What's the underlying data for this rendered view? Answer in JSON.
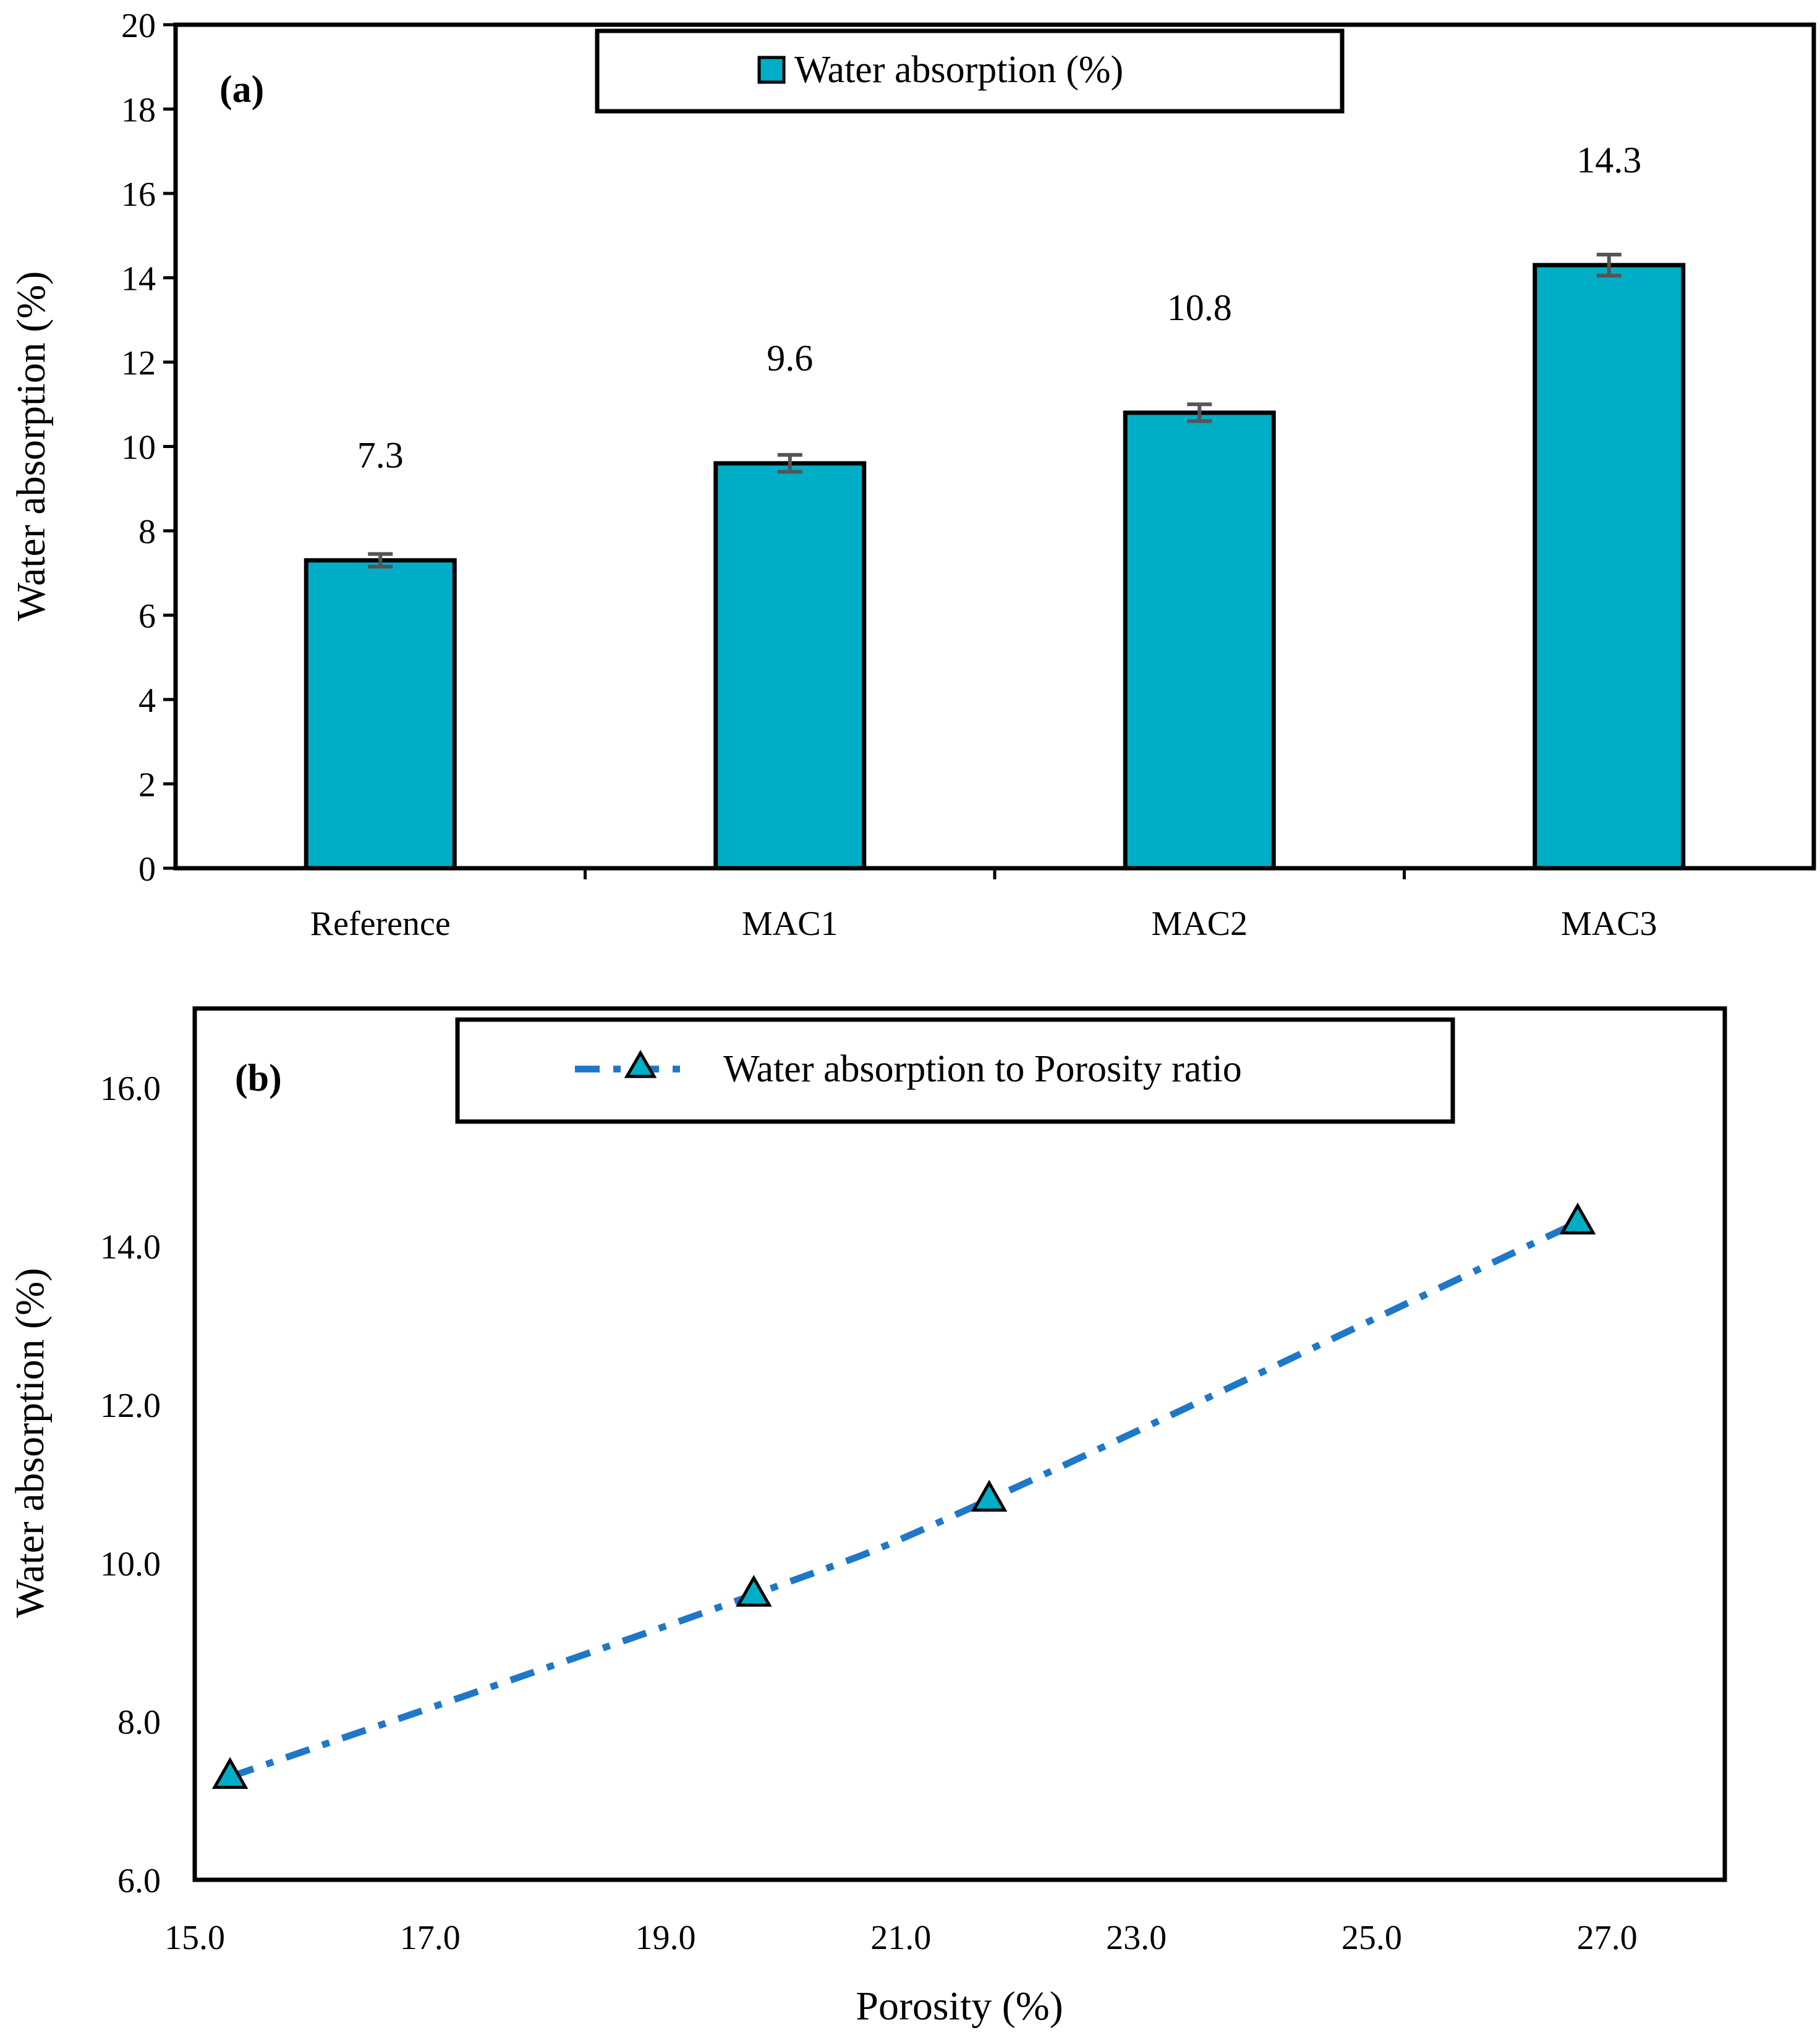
{
  "chart_data": [
    {
      "type": "bar",
      "panel_label": "(a)",
      "categories": [
        "Reference",
        "MAC1",
        "MAC2",
        "MAC3"
      ],
      "series": [
        {
          "name": "Water absorption (%)",
          "values": [
            7.3,
            9.6,
            10.8,
            14.3
          ],
          "error": [
            0.15,
            0.2,
            0.2,
            0.25
          ],
          "labels": [
            "7.3",
            "9.6",
            "10.8",
            "14.3"
          ],
          "color": "#00AEC7"
        }
      ],
      "ylabel": "Water absorption (%)",
      "xlabel": "",
      "ylim": [
        0,
        20
      ],
      "ytick_step": 2,
      "yticks": [
        "0",
        "2",
        "4",
        "6",
        "8",
        "10",
        "12",
        "14",
        "16",
        "18",
        "20"
      ],
      "legend": "top-center",
      "grid": false
    },
    {
      "type": "line",
      "panel_label": "(b)",
      "series": [
        {
          "name": "Water absorption to Porosity ratio",
          "x": [
            15.3,
            19.75,
            21.75,
            26.75
          ],
          "y": [
            7.3,
            9.6,
            10.8,
            14.3
          ],
          "line_color": "#1F77C8",
          "line_style": "dash-dot",
          "marker": "triangle",
          "marker_color": "#00AEC7"
        }
      ],
      "xlabel": "Porosity (%)",
      "ylabel": "Water absorption (%)",
      "xlim": [
        15,
        28
      ],
      "ylim": [
        6,
        17
      ],
      "xticks": [
        "15.0",
        "17.0",
        "19.0",
        "21.0",
        "23.0",
        "25.0",
        "27.0"
      ],
      "yticks": [
        "6.0",
        "8.0",
        "10.0",
        "12.0",
        "14.0",
        "16.0"
      ],
      "legend": "top-center",
      "grid": false
    }
  ]
}
